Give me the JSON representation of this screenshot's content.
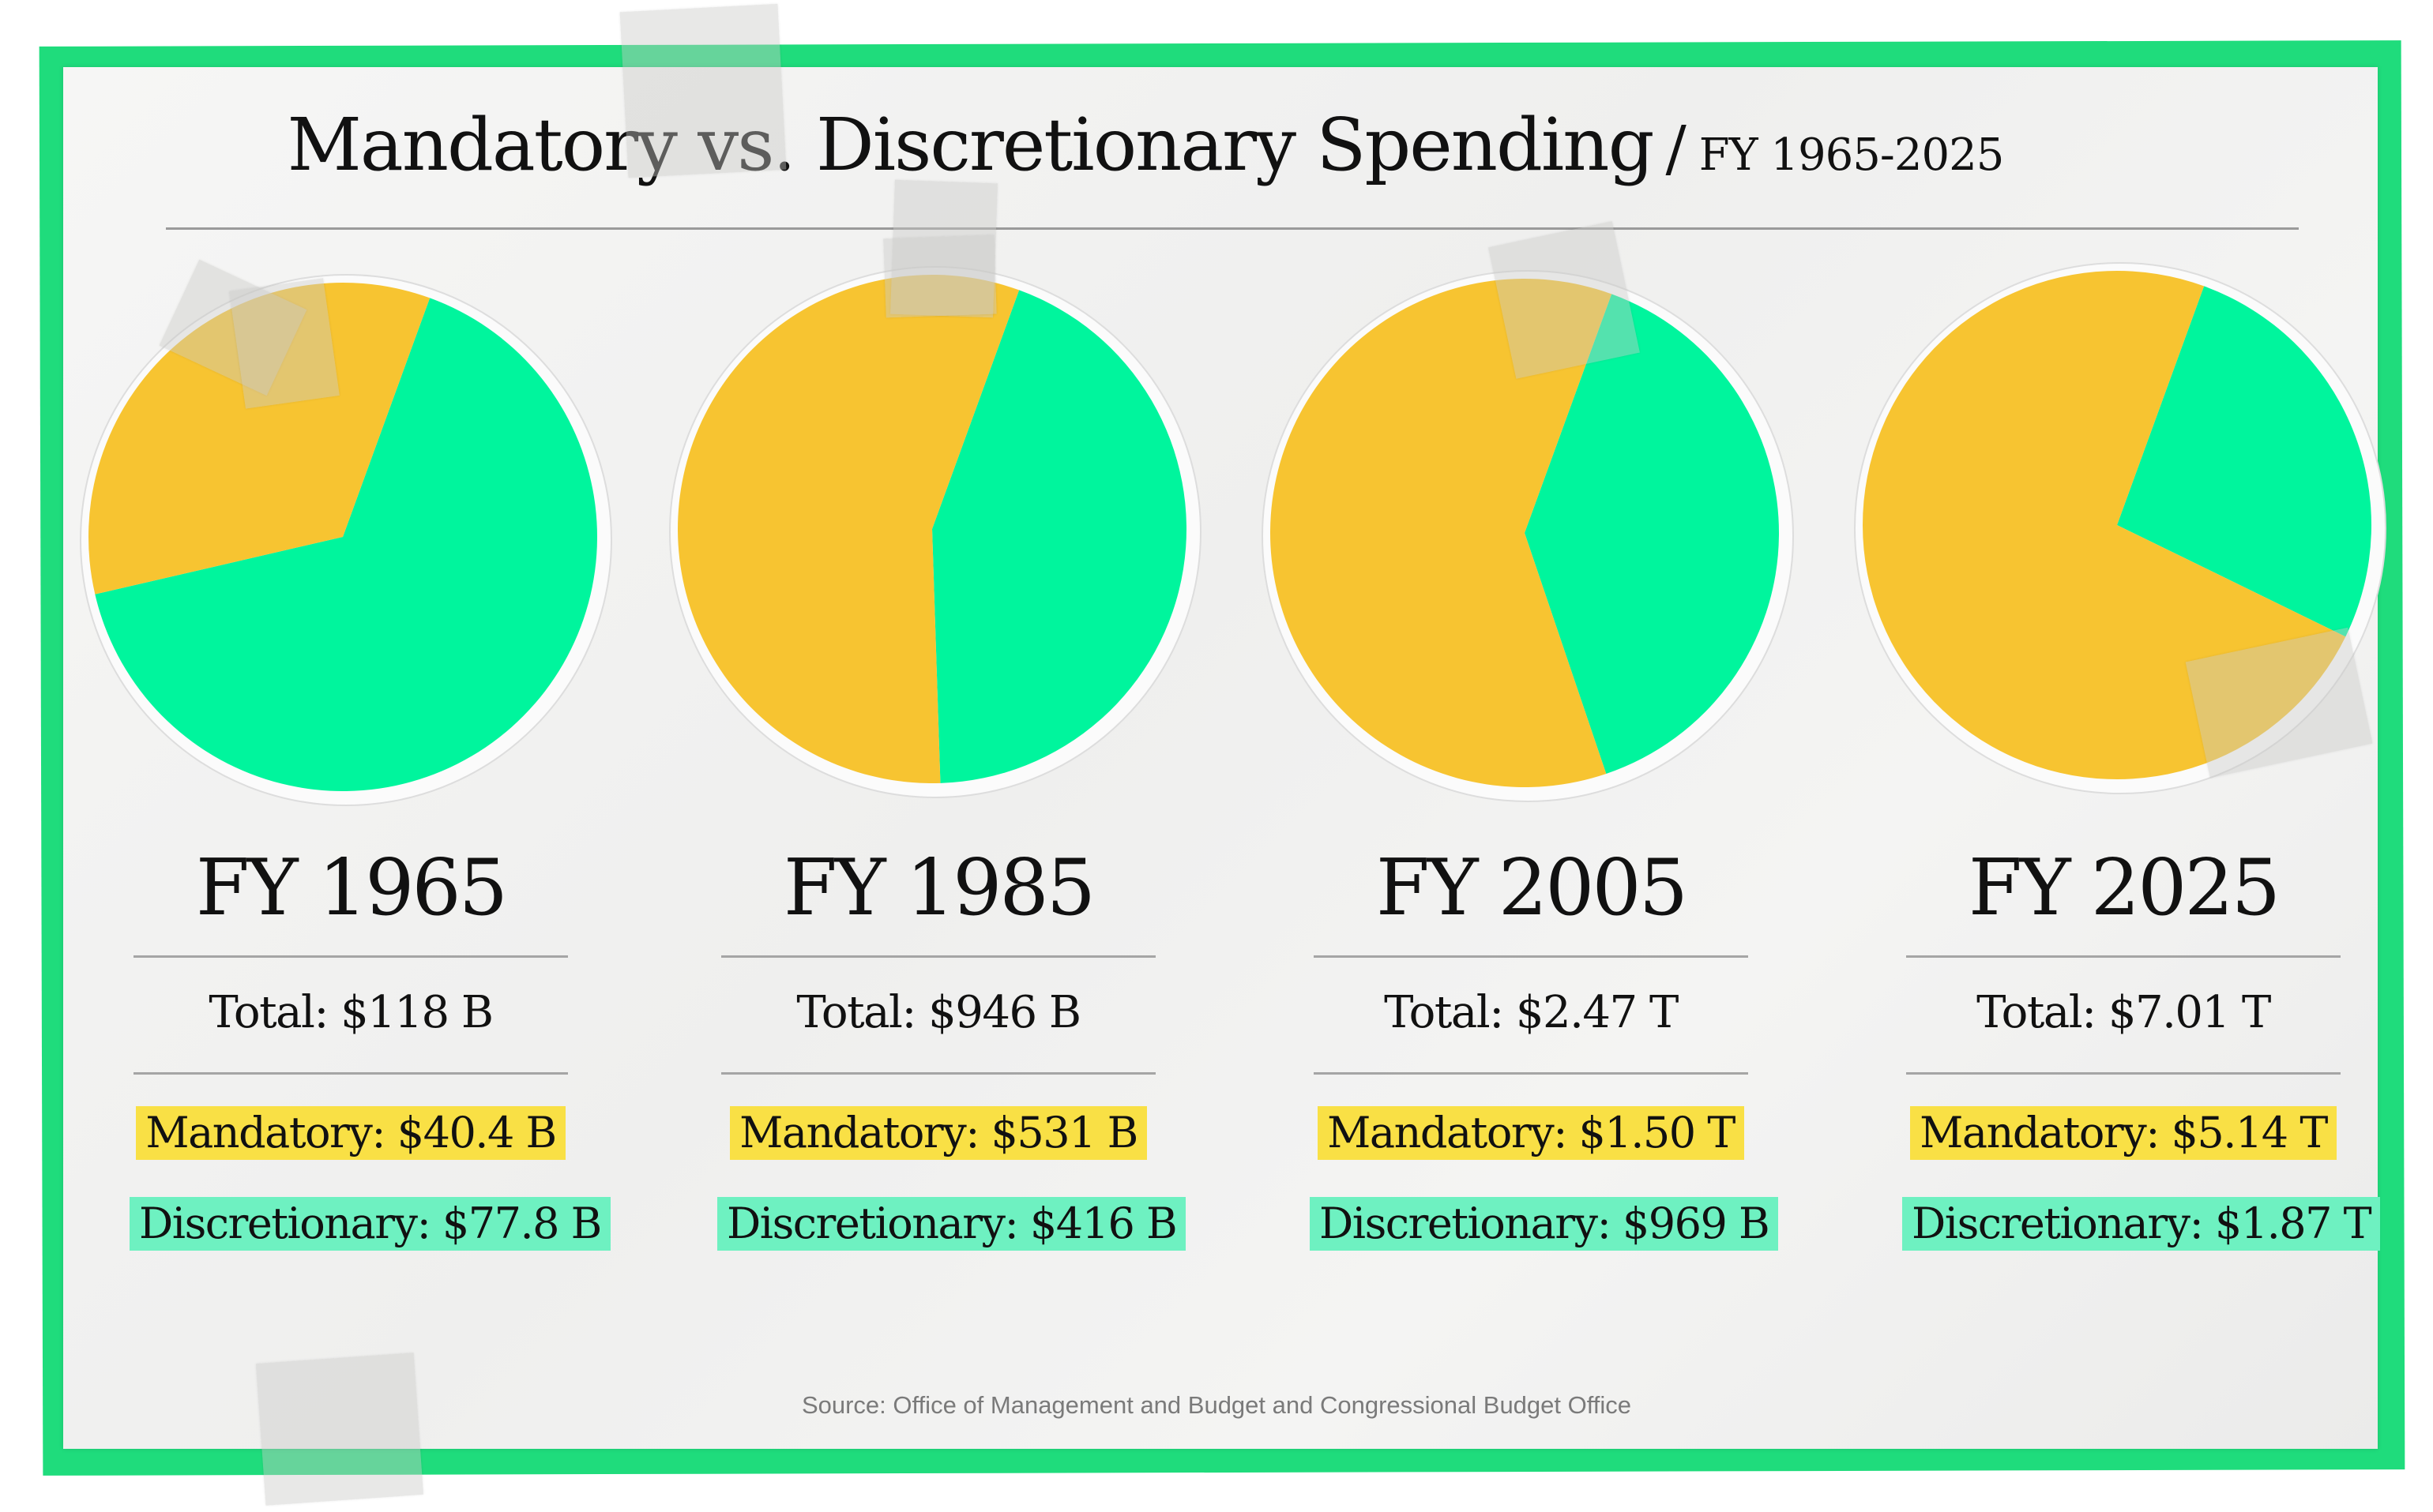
{
  "title": {
    "main": "Mandatory vs. Discretionary Spending",
    "separator": "/",
    "subtitle": "FY 1965-2025"
  },
  "source": "Source: Office of Management and Budget and Congressional Budget Office",
  "colors": {
    "mandatory": "#f7c431",
    "discretionary": "#00f59d",
    "frame": "#1fdc7c",
    "mandatory_highlight": "#f9e045",
    "discretionary_highlight": "#6ef1c1"
  },
  "chart_data": {
    "type": "pie",
    "title": "Mandatory vs. Discretionary Spending / FY 1965-2025",
    "legend": "none",
    "series": [
      {
        "year_label": "FY 1965",
        "total_label": "Total: $118 B",
        "mandatory_label": "Mandatory: $40.4 B",
        "discretionary_label": "Discretionary: $77.8 B",
        "slices": [
          {
            "name": "Mandatory",
            "value": 40.4
          },
          {
            "name": "Discretionary",
            "value": 77.8
          }
        ]
      },
      {
        "year_label": "FY 1985",
        "total_label": "Total: $946 B",
        "mandatory_label": "Mandatory: $531 B",
        "discretionary_label": "Discretionary: $416 B",
        "slices": [
          {
            "name": "Mandatory",
            "value": 531
          },
          {
            "name": "Discretionary",
            "value": 416
          }
        ]
      },
      {
        "year_label": "FY 2005",
        "total_label": "Total: $2.47 T",
        "mandatory_label": "Mandatory: $1.50 T",
        "discretionary_label": "Discretionary: $969 B",
        "slices": [
          {
            "name": "Mandatory",
            "value": 1500
          },
          {
            "name": "Discretionary",
            "value": 969
          }
        ]
      },
      {
        "year_label": "FY 2025",
        "total_label": "Total: $7.01 T",
        "mandatory_label": "Mandatory: $5.14 T",
        "discretionary_label": "Discretionary: $1.87 T",
        "slices": [
          {
            "name": "Mandatory",
            "value": 5140
          },
          {
            "name": "Discretionary",
            "value": 1870
          }
        ]
      }
    ]
  }
}
